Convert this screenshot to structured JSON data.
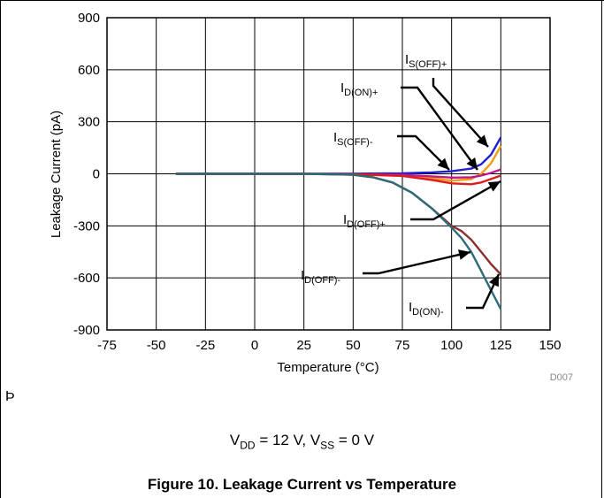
{
  "chart_data": {
    "type": "line",
    "xlabel": "Temperature (°C)",
    "ylabel": "Leakage Current (pA)",
    "xlim": [
      -75,
      150
    ],
    "ylim": [
      -900,
      900
    ],
    "xticks": [
      -75,
      -50,
      -25,
      0,
      25,
      50,
      75,
      100,
      125,
      150
    ],
    "yticks": [
      -900,
      -600,
      -300,
      0,
      300,
      600,
      900
    ],
    "grid": true,
    "series": [
      {
        "name": "IS(OFF)+",
        "color": "#1f1fd0",
        "x": [
          -40,
          0,
          25,
          50,
          75,
          90,
          100,
          110,
          115,
          120,
          125
        ],
        "y": [
          0,
          0,
          0,
          1,
          3,
          8,
          15,
          30,
          55,
          110,
          210
        ]
      },
      {
        "name": "ID(ON)+",
        "color": "#f39c12",
        "x": [
          -40,
          0,
          25,
          50,
          75,
          90,
          100,
          110,
          115,
          120,
          125
        ],
        "y": [
          0,
          0,
          0,
          -2,
          -8,
          -25,
          -40,
          -30,
          0,
          60,
          160
        ]
      },
      {
        "name": "IS(OFF)-",
        "color": "#c0188c",
        "x": [
          -40,
          0,
          25,
          50,
          75,
          90,
          100,
          110,
          115,
          120,
          125
        ],
        "y": [
          0,
          0,
          0,
          -2,
          -6,
          -15,
          -22,
          -20,
          -10,
          5,
          25
        ]
      },
      {
        "name": "ID(OFF)+",
        "color": "#e01b1b",
        "x": [
          -40,
          0,
          25,
          50,
          75,
          90,
          100,
          110,
          115,
          120,
          125
        ],
        "y": [
          0,
          0,
          0,
          -3,
          -12,
          -35,
          -55,
          -60,
          -50,
          -30,
          -10
        ]
      },
      {
        "name": "ID(OFF)-",
        "color": "#8b3030",
        "x": [
          -40,
          0,
          25,
          50,
          60,
          70,
          80,
          90,
          100,
          105,
          110,
          115,
          120,
          125
        ],
        "y": [
          0,
          0,
          0,
          -5,
          -20,
          -50,
          -110,
          -200,
          -300,
          -330,
          -380,
          -450,
          -520,
          -580
        ]
      },
      {
        "name": "ID(ON)-",
        "color": "#2e6b78",
        "x": [
          -40,
          0,
          25,
          50,
          60,
          70,
          80,
          90,
          100,
          105,
          110,
          115,
          120,
          125
        ],
        "y": [
          0,
          0,
          0,
          -5,
          -20,
          -50,
          -110,
          -200,
          -310,
          -370,
          -450,
          -560,
          -670,
          -780
        ]
      }
    ],
    "annotations": [
      {
        "main": "I",
        "sub": "S(OFF)+"
      },
      {
        "main": "I",
        "sub": "D(ON)+"
      },
      {
        "main": "I",
        "sub": "S(OFF)-"
      },
      {
        "main": "I",
        "sub": "D(OFF)+"
      },
      {
        "main": "I",
        "sub": "D(OFF)-"
      },
      {
        "main": "I",
        "sub": "D(ON)-"
      }
    ],
    "figure_id": "D007"
  },
  "conditions": {
    "vdd": "V",
    "vdd_sub": "DD",
    "vdd_val": " = 12 V, V",
    "vss_sub": "SS",
    "vss_val": " = 0 V"
  },
  "caption": "Figure 10. Leakage Current vs Temperature",
  "marker_glyph": "Þ"
}
